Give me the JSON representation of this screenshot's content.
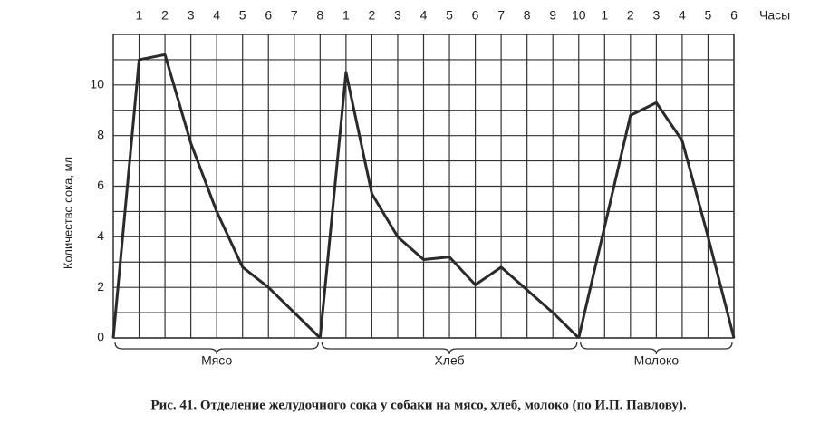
{
  "chart_data": {
    "type": "line",
    "caption": "Рис. 41.  Отделение желудочного сока у собаки на мясо, хлеб, молоко (по И.П. Павлову).",
    "x_label": "Часы",
    "y_label": "Количество сока, мл",
    "xlim": [
      0,
      24
    ],
    "xticks": [
      1,
      2,
      3,
      4,
      5,
      6,
      7,
      8,
      {
        "value": 9,
        "label": "1"
      },
      {
        "value": 10,
        "label": "2"
      },
      {
        "value": 11,
        "label": "3"
      },
      {
        "value": 12,
        "label": "4"
      },
      {
        "value": 13,
        "label": "5"
      },
      {
        "value": 14,
        "label": "6"
      },
      {
        "value": 15,
        "label": "7"
      },
      {
        "value": 16,
        "label": "8"
      },
      {
        "value": 17,
        "label": "9"
      },
      {
        "value": 18,
        "label": "10"
      },
      {
        "value": 19,
        "label": "1"
      },
      {
        "value": 20,
        "label": "2"
      },
      {
        "value": 21,
        "label": "3"
      },
      {
        "value": 22,
        "label": "4"
      },
      {
        "value": 23,
        "label": "5"
      },
      {
        "value": 24,
        "label": "6"
      }
    ],
    "ylim": [
      0,
      12
    ],
    "yticks": [
      0,
      2,
      4,
      6,
      8,
      10
    ],
    "yminor": [
      1,
      3,
      5,
      7,
      9,
      11
    ],
    "grid": true,
    "series": [
      {
        "name": "Мясо",
        "color": "#2a2a2a",
        "x": [
          0,
          1,
          2,
          3,
          4,
          5,
          6,
          7,
          8
        ],
        "values": [
          0,
          11,
          11.2,
          7.7,
          5,
          2.8,
          2,
          1,
          0
        ]
      },
      {
        "name": "Хлеб",
        "color": "#2a2a2a",
        "x": [
          8,
          9,
          10,
          11,
          12,
          13,
          14,
          15,
          16,
          17,
          18
        ],
        "values": [
          0,
          10.5,
          5.7,
          4,
          3.1,
          3.2,
          2.1,
          2.8,
          1.9,
          1,
          0
        ]
      },
      {
        "name": "Молоко",
        "color": "#2a2a2a",
        "x": [
          18,
          20,
          21,
          22,
          23,
          24
        ],
        "values": [
          0,
          8.8,
          9.3,
          7.8,
          4,
          0
        ]
      }
    ]
  }
}
